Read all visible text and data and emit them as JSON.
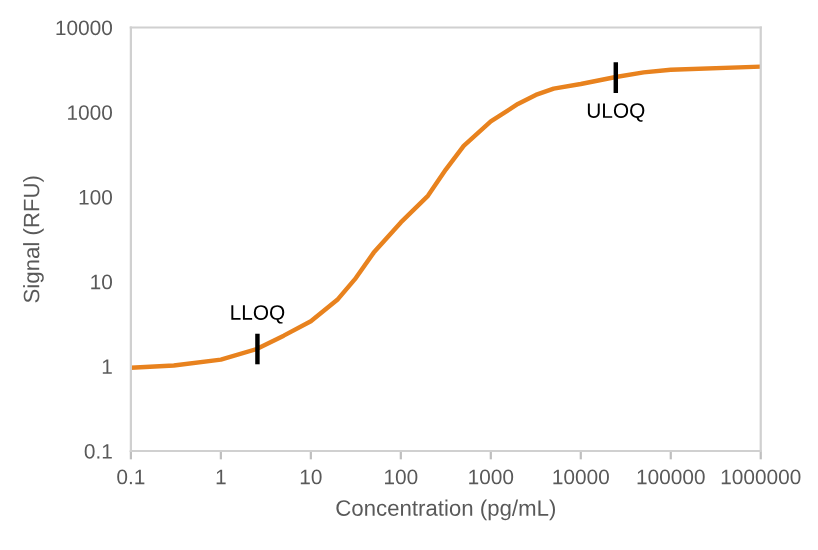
{
  "chart_data": {
    "type": "line",
    "xlabel": "Concentration (pg/mL)",
    "ylabel": "Signal (RFU)",
    "log": "xy",
    "x": [
      0.1,
      0.3,
      1,
      2.5,
      5,
      10,
      20,
      31.6,
      50,
      100,
      200,
      316,
      500,
      1000,
      2000,
      3162,
      5000,
      10000,
      24500,
      50000,
      100000,
      1000000
    ],
    "series": [
      {
        "color": "#e8821e",
        "values": [
          0.96,
          1.02,
          1.2,
          1.6,
          2.3,
          3.4,
          6.2,
          11,
          22,
          50,
          103,
          210,
          400,
          780,
          1250,
          1600,
          1900,
          2150,
          2600,
          2950,
          3170,
          3450
        ]
      }
    ],
    "xlim": [
      0.1,
      1000000
    ],
    "xticks": [
      0.1,
      1,
      10,
      100,
      1000,
      10000,
      100000,
      1000000
    ],
    "ylim": [
      0.1,
      10000
    ],
    "yticks": [
      0.1,
      1,
      10,
      100,
      1000,
      10000
    ],
    "annotations": [
      {
        "text": "LLOQ",
        "x": 2.55,
        "y": 1.6
      },
      {
        "text": "ULOQ",
        "x": 24500,
        "y": 2560
      }
    ],
    "marker": "none",
    "line_style": "solid"
  }
}
